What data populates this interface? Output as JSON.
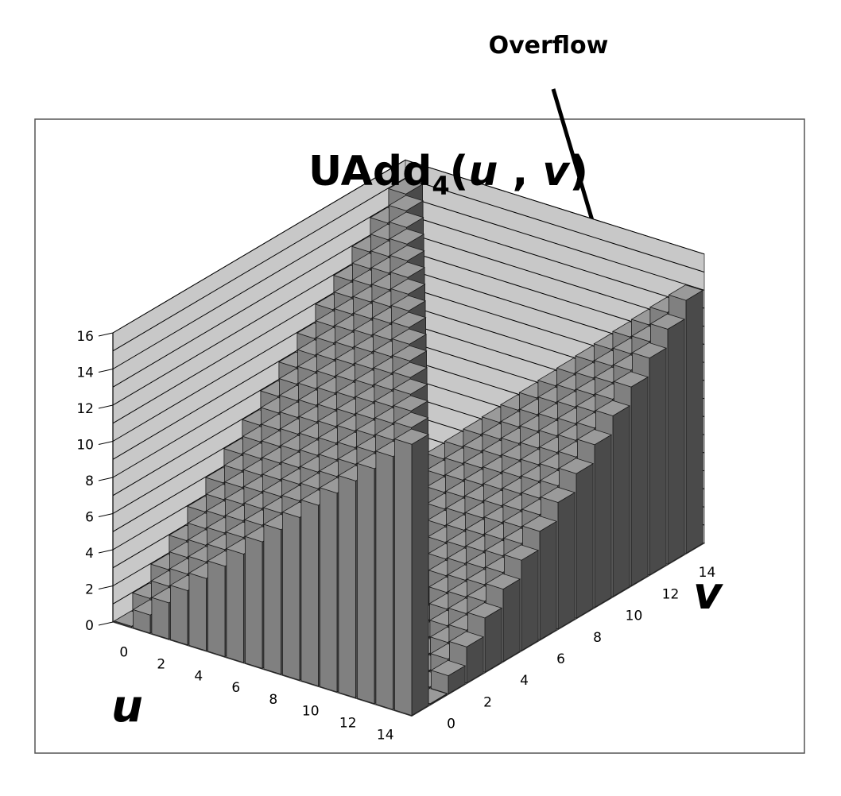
{
  "annotation": {
    "label": "Overflow"
  },
  "chart_data": {
    "type": "bar3d",
    "title": {
      "main": "UAdd",
      "sub": "4",
      "open": "(",
      "u": "u",
      "sep": " , ",
      "v": "v",
      "close": ")"
    },
    "xlabel": "u",
    "ylabel": "v",
    "zlim": [
      0,
      16
    ],
    "z_ticks": [
      "0",
      "2",
      "4",
      "6",
      "8",
      "10",
      "12",
      "14",
      "16"
    ],
    "u_ticks": [
      "0",
      "2",
      "4",
      "6",
      "8",
      "10",
      "12",
      "14"
    ],
    "v_ticks": [
      "0",
      "2",
      "4",
      "6",
      "8",
      "10",
      "12",
      "14"
    ],
    "u_range": [
      0,
      15
    ],
    "v_range": [
      0,
      15
    ],
    "modulus": 16,
    "rule": "value = (u + v) mod 16",
    "grid": true,
    "colors": {
      "background": "#ffffff",
      "wall": "#c8c8c8",
      "floor": "#a0a0a0",
      "bar_top": "#9a9a9a",
      "bar_front": "#808080",
      "bar_side": "#4a4a4a",
      "edge": "#1a1a1a"
    }
  }
}
